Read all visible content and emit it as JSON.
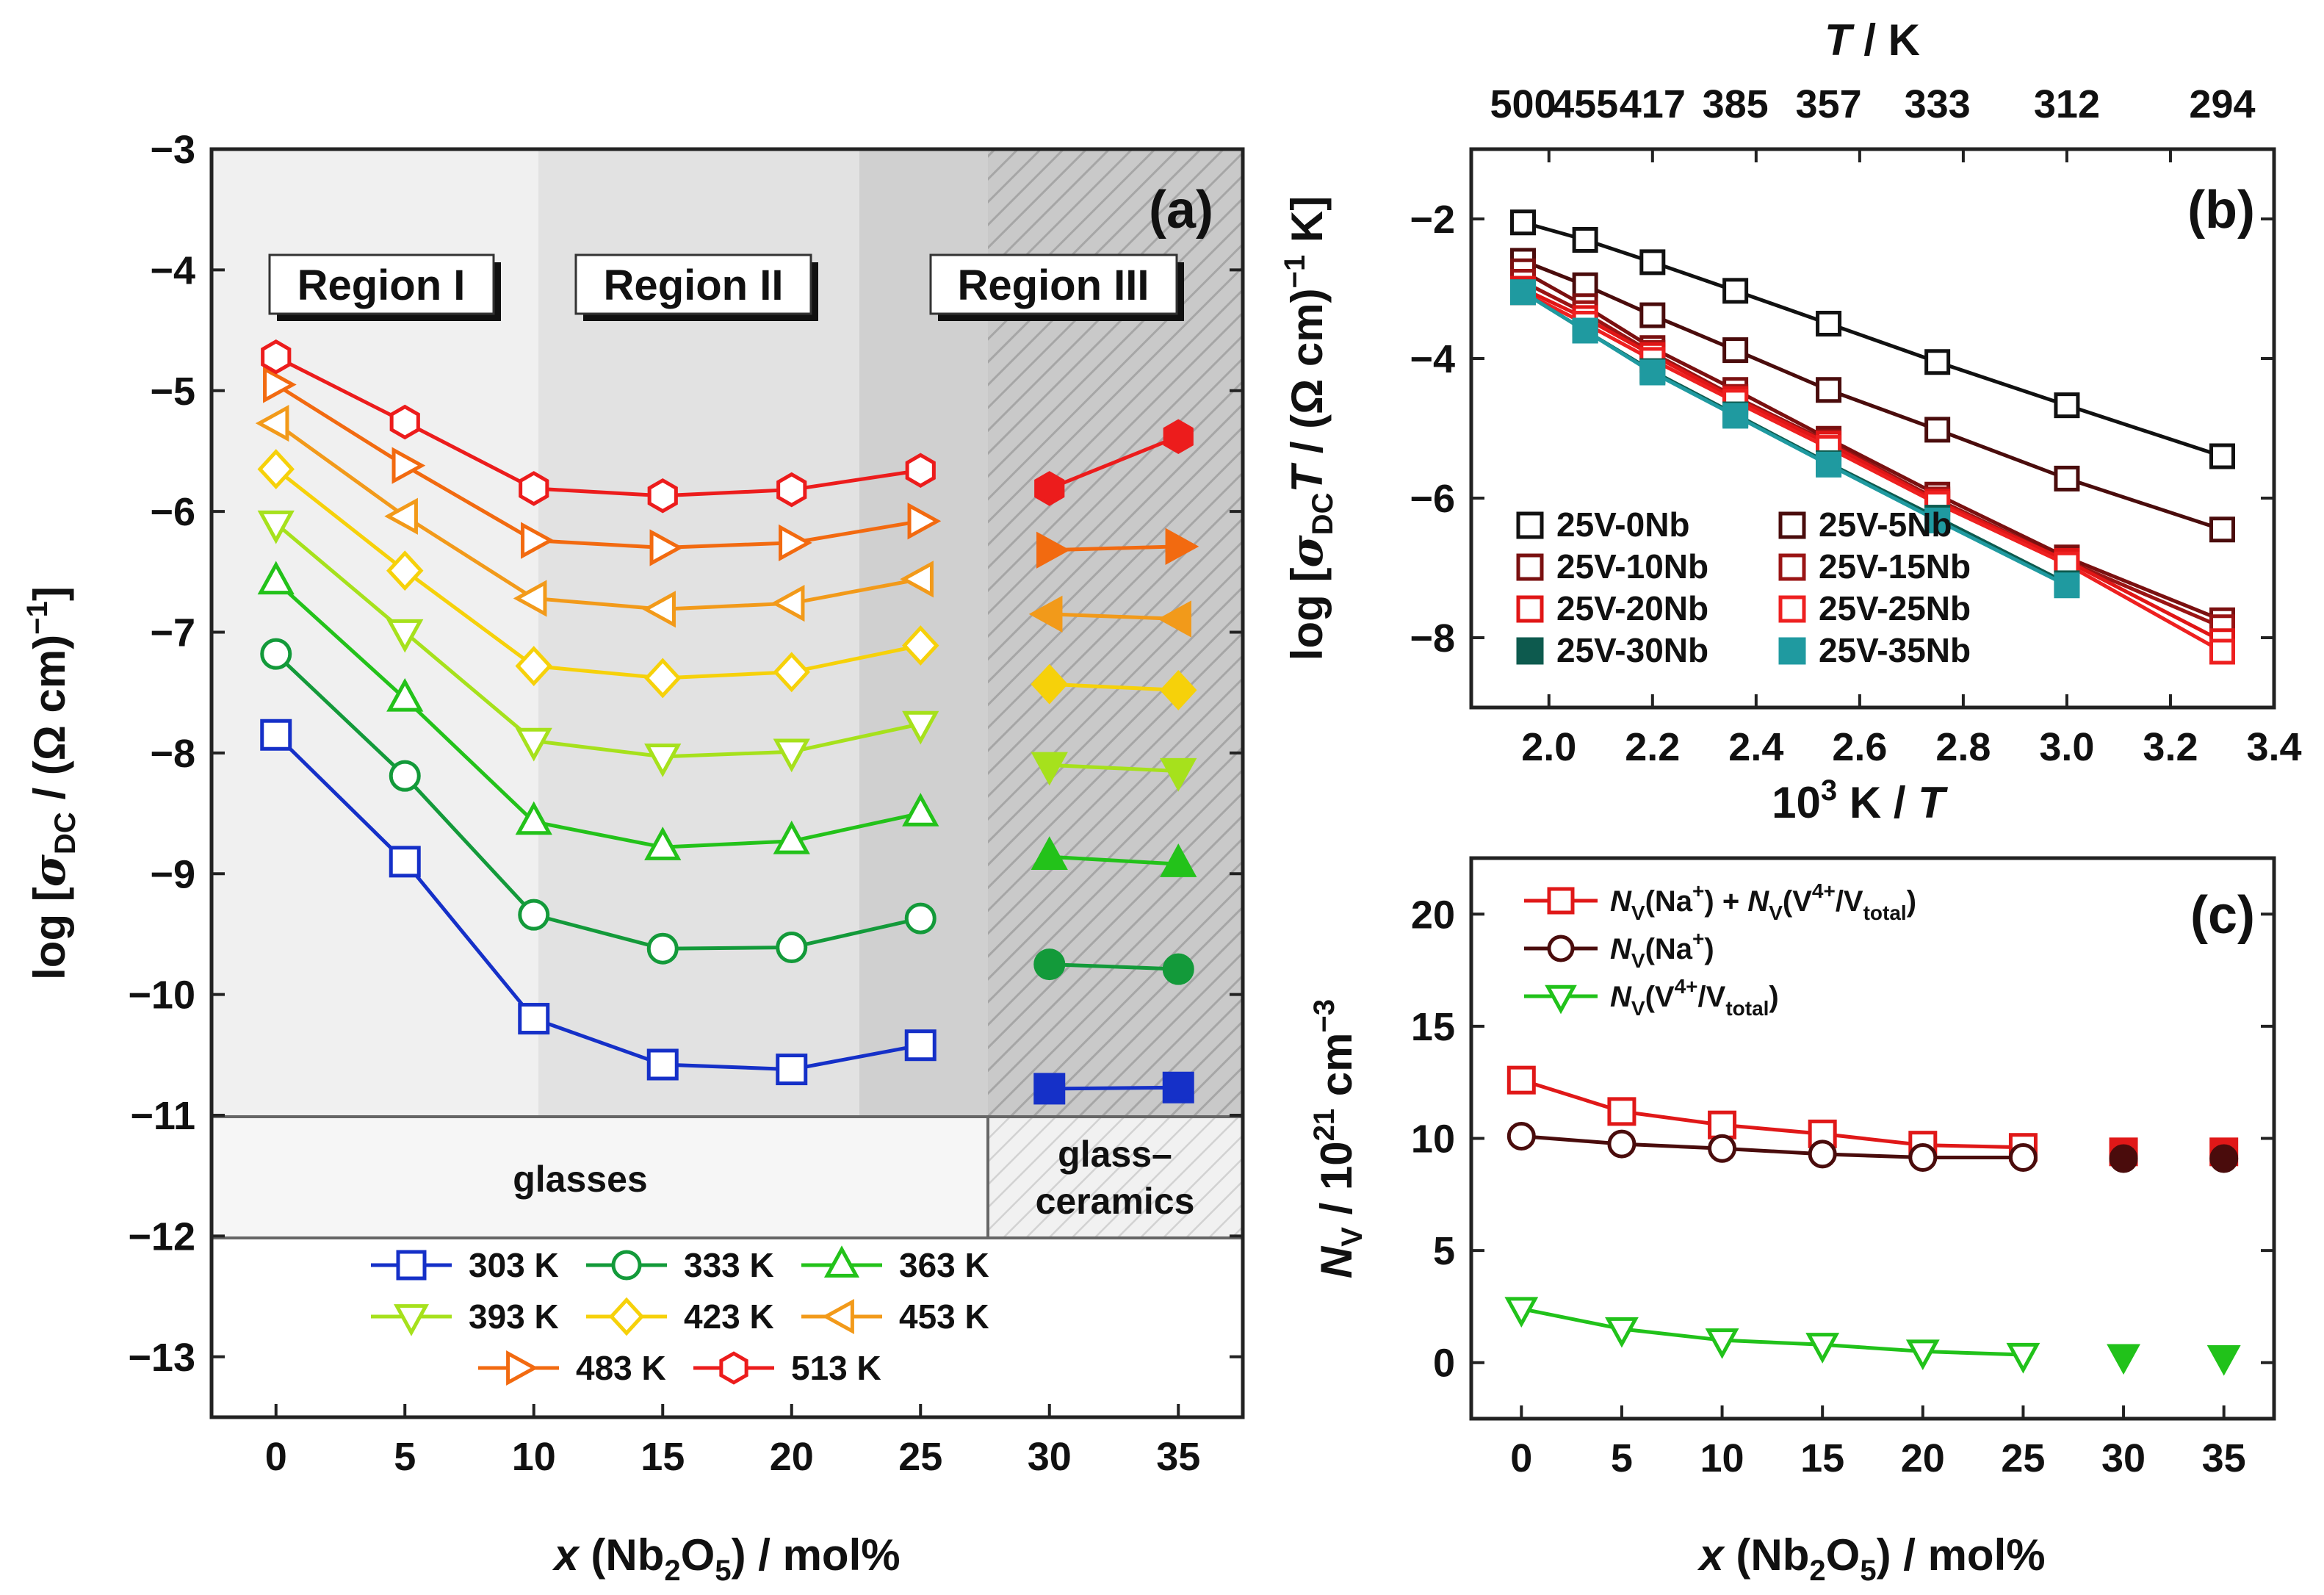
{
  "colors": {
    "303": "#1530c8",
    "333": "#139a3a",
    "363": "#23c21a",
    "393": "#a6e11c",
    "423": "#f6d10a",
    "453": "#f29a1a",
    "483": "#f26a10",
    "513": "#ec1c1c",
    "nb0": "#111111",
    "nb5": "#4a0c0c",
    "nb10": "#7a1010",
    "nb15": "#9a1414",
    "nb20": "#e01616",
    "nb25": "#ee2020",
    "nb30": "#0d5a4e",
    "nb35": "#1f9aa0",
    "c_sum": "#e01818",
    "c_na": "#4a0c0c",
    "c_v4": "#21c21a"
  },
  "chart_data": [
    {
      "id": "a",
      "type": "line",
      "panel_label": "(a)",
      "xlabel_parts": [
        "x",
        " (Nb",
        "2",
        "O",
        "5",
        ") / mol%"
      ],
      "ylabel_parts": [
        "log [",
        "σ",
        "DC",
        " / (Ω cm)",
        "−1",
        "]"
      ],
      "xlim": [
        -2.5,
        37.5
      ],
      "ylim": [
        -13.5,
        -3
      ],
      "xticks": [
        0,
        5,
        10,
        15,
        20,
        25,
        30,
        35
      ],
      "yticks": [
        -13,
        -12,
        -11,
        -10,
        -9,
        -8,
        -7,
        -6,
        -5,
        -4,
        -3
      ],
      "regions": [
        "Region I",
        "Region II",
        "Region III"
      ],
      "zones": {
        "glasses": "glasses",
        "gc_line1": "glass–",
        "gc_line2": "ceramics"
      },
      "series": [
        {
          "name": "303 K",
          "marker": "square",
          "color_key": "303",
          "glass_x": [
            0,
            5,
            10,
            15,
            20,
            25
          ],
          "glass_y": [
            -7.85,
            -8.9,
            -10.2,
            -10.58,
            -10.62,
            -10.42
          ],
          "gc_x": [
            30,
            35
          ],
          "gc_y": [
            -10.78,
            -10.77
          ]
        },
        {
          "name": "333 K",
          "marker": "circle",
          "color_key": "333",
          "glass_x": [
            0,
            5,
            10,
            15,
            20,
            25
          ],
          "glass_y": [
            -7.18,
            -8.19,
            -9.34,
            -9.62,
            -9.61,
            -9.37
          ],
          "gc_x": [
            30,
            35
          ],
          "gc_y": [
            -9.75,
            -9.79
          ]
        },
        {
          "name": "363 K",
          "marker": "triangle-up",
          "color_key": "363",
          "glass_x": [
            0,
            5,
            10,
            15,
            20,
            25
          ],
          "glass_y": [
            -6.58,
            -7.55,
            -8.57,
            -8.78,
            -8.73,
            -8.5
          ],
          "gc_x": [
            30,
            35
          ],
          "gc_y": [
            -8.86,
            -8.92
          ]
        },
        {
          "name": "393 K",
          "marker": "triangle-down",
          "color_key": "393",
          "glass_x": [
            0,
            5,
            10,
            15,
            20,
            25
          ],
          "glass_y": [
            -6.1,
            -7.0,
            -7.9,
            -8.03,
            -7.99,
            -7.76
          ],
          "gc_x": [
            30,
            35
          ],
          "gc_y": [
            -8.1,
            -8.15
          ]
        },
        {
          "name": "423 K",
          "marker": "diamond",
          "color_key": "423",
          "glass_x": [
            0,
            5,
            10,
            15,
            20,
            25
          ],
          "glass_y": [
            -5.65,
            -6.49,
            -7.28,
            -7.38,
            -7.33,
            -7.11
          ],
          "gc_x": [
            30,
            35
          ],
          "gc_y": [
            -7.43,
            -7.48
          ]
        },
        {
          "name": "453 K",
          "marker": "triangle-left",
          "color_key": "453",
          "glass_x": [
            0,
            5,
            10,
            15,
            20,
            25
          ],
          "glass_y": [
            -5.27,
            -6.04,
            -6.72,
            -6.81,
            -6.76,
            -6.56
          ],
          "gc_x": [
            30,
            35
          ],
          "gc_y": [
            -6.85,
            -6.89
          ]
        },
        {
          "name": "483 K",
          "marker": "triangle-right",
          "color_key": "483",
          "glass_x": [
            0,
            5,
            10,
            15,
            20,
            25
          ],
          "glass_y": [
            -4.95,
            -5.62,
            -6.24,
            -6.3,
            -6.26,
            -6.08
          ],
          "gc_x": [
            30,
            35
          ],
          "gc_y": [
            -6.32,
            -6.29
          ]
        },
        {
          "name": "513 K",
          "marker": "hexagon",
          "color_key": "513",
          "glass_x": [
            0,
            5,
            10,
            15,
            20,
            25
          ],
          "glass_y": [
            -4.72,
            -5.26,
            -5.81,
            -5.87,
            -5.82,
            -5.66
          ],
          "gc_x": [
            30,
            35
          ],
          "gc_y": [
            -5.81,
            -5.38
          ]
        }
      ]
    },
    {
      "id": "b",
      "type": "line",
      "panel_label": "(b)",
      "xlabel_parts": [
        "10",
        "3",
        " K / ",
        "T"
      ],
      "ylabel_parts": [
        "log [",
        "σ",
        "DC",
        "T",
        " / (Ω cm)",
        "−1",
        " K]"
      ],
      "top_axis_title": [
        "T",
        " / K"
      ],
      "top_ticks": [
        "500",
        "455",
        "417",
        "385",
        "357",
        "333",
        "312",
        "294"
      ],
      "xlim": [
        1.85,
        3.4
      ],
      "ylim": [
        -9,
        -1
      ],
      "xticks": [
        2.0,
        2.2,
        2.4,
        2.6,
        2.8,
        3.0,
        3.2,
        3.4
      ],
      "yticks": [
        -8,
        -6,
        -4,
        -2
      ],
      "x": [
        1.95,
        2.07,
        2.2,
        2.36,
        2.54,
        2.75,
        3.0,
        3.3
      ],
      "series": [
        {
          "name": "25V-0Nb",
          "color_key": "nb0",
          "filled": false,
          "y": [
            -2.05,
            -2.3,
            -2.62,
            -3.03,
            -3.5,
            -4.05,
            -4.67,
            -5.4
          ]
        },
        {
          "name": "25V-5Nb",
          "color_key": "nb5",
          "filled": false,
          "y": [
            -2.6,
            -2.95,
            -3.38,
            -3.88,
            -4.45,
            -5.02,
            -5.72,
            -6.45
          ]
        },
        {
          "name": "25V-10Nb",
          "color_key": "nb10",
          "filled": false,
          "y": [
            -2.75,
            -3.25,
            -3.85,
            -4.45,
            -5.15,
            -5.95,
            -6.85,
            -7.75
          ]
        },
        {
          "name": "25V-15Nb",
          "color_key": "nb15",
          "filled": false,
          "y": [
            -2.9,
            -3.35,
            -3.92,
            -4.55,
            -5.2,
            -6.02,
            -6.9,
            -7.85
          ]
        },
        {
          "name": "25V-20Nb",
          "color_key": "nb20",
          "filled": false,
          "y": [
            -3.0,
            -3.42,
            -3.95,
            -4.58,
            -5.22,
            -6.05,
            -6.9,
            -8.05
          ]
        },
        {
          "name": "25V-25Nb",
          "color_key": "nb25",
          "filled": false,
          "y": [
            -3.05,
            -3.5,
            -4.02,
            -4.62,
            -5.28,
            -6.08,
            -6.95,
            -8.2
          ]
        },
        {
          "name": "25V-30Nb",
          "color_key": "nb30",
          "filled": true,
          "y": [
            -3.05,
            -3.6,
            -4.18,
            -4.8,
            -5.5,
            -6.28,
            -7.22,
            null
          ]
        },
        {
          "name": "25V-35Nb",
          "color_key": "nb35",
          "filled": true,
          "y": [
            -3.05,
            -3.6,
            -4.2,
            -4.82,
            -5.52,
            -6.32,
            -7.25,
            null
          ]
        }
      ]
    },
    {
      "id": "c",
      "type": "line",
      "panel_label": "(c)",
      "xlabel_parts": [
        "x",
        " (Nb",
        "2",
        "O",
        "5",
        ") / mol%"
      ],
      "ylabel_parts": [
        "N",
        "V",
        " / 10",
        "21",
        " cm",
        "−3"
      ],
      "xlim": [
        -2.5,
        37.5
      ],
      "ylim": [
        -2.5,
        22.5
      ],
      "xticks": [
        0,
        5,
        10,
        15,
        20,
        25,
        30,
        35
      ],
      "yticks": [
        0,
        5,
        10,
        15,
        20
      ],
      "series": [
        {
          "name": "N_V(Na+) + N_V(V4+/V_total)",
          "marker": "square",
          "color_key": "c_sum",
          "glass_x": [
            0,
            5,
            10,
            15,
            20,
            25
          ],
          "glass_y": [
            12.6,
            11.2,
            10.6,
            10.2,
            9.7,
            9.6
          ],
          "gc_x": [
            30,
            35
          ],
          "gc_y": [
            9.4,
            9.4
          ]
        },
        {
          "name": "N_V(Na+)",
          "marker": "circle",
          "color_key": "c_na",
          "glass_x": [
            0,
            5,
            10,
            15,
            20,
            25
          ],
          "glass_y": [
            10.1,
            9.75,
            9.55,
            9.3,
            9.15,
            9.15
          ],
          "gc_x": [
            30,
            35
          ],
          "gc_y": [
            9.1,
            9.1
          ]
        },
        {
          "name": "N_V(V4+/V_total)",
          "marker": "triangle-down",
          "color_key": "c_v4",
          "glass_x": [
            0,
            5,
            10,
            15,
            20,
            25
          ],
          "glass_y": [
            2.4,
            1.5,
            1.0,
            0.8,
            0.5,
            0.35
          ],
          "gc_x": [
            30,
            35
          ],
          "gc_y": [
            0.3,
            0.25
          ]
        }
      ]
    }
  ]
}
